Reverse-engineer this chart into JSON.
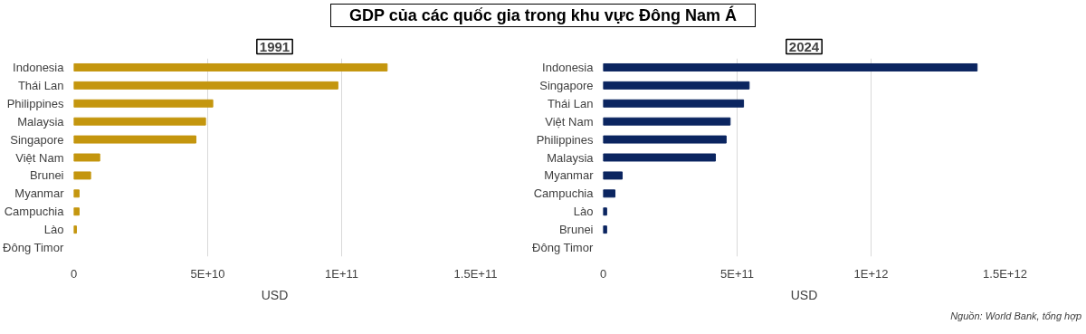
{
  "chart_data": [
    {
      "type": "bar",
      "orientation": "horizontal",
      "title": "1991",
      "xlabel": "USD",
      "categories": [
        "Indonesia",
        "Thái Lan",
        "Philippines",
        "Malaysia",
        "Singapore",
        "Việt Nam",
        "Brunei",
        "Myanmar",
        "Campuchia",
        "Lào",
        "Đông Timor"
      ],
      "values": [
        117000000000.0,
        98600000000.0,
        51900000000.0,
        49200000000.0,
        45600000000.0,
        9700000000.0,
        6300000000.0,
        2000000000.0,
        2000000000.0,
        1000000000.0,
        null
      ],
      "color": "#c4960e",
      "xlim": [
        0,
        150000000000.0
      ],
      "xticks": [
        0,
        {
          "value": 50000000000.0,
          "label": "5E+10"
        },
        {
          "value": 100000000000.0,
          "label": "1E+11"
        },
        {
          "value": 150000000000.0,
          "label": "1.5E+11"
        }
      ],
      "grid": "x",
      "annotations": [
        "GDP của các quốc gia trong khu vực Đông Nam Á"
      ]
    },
    {
      "type": "bar",
      "orientation": "horizontal",
      "title": "2024",
      "xlabel": "USD",
      "categories": [
        "Indonesia",
        "Singapore",
        "Thái Lan",
        "Việt Nam",
        "Philippines",
        "Malaysia",
        "Myanmar",
        "Campuchia",
        "Lào",
        "Brunei",
        "Đông Timor"
      ],
      "values": [
        1396000000000.0,
        545000000000.0,
        524000000000.0,
        474000000000.0,
        459000000000.0,
        419000000000.0,
        71000000000.0,
        44000000000.0,
        13000000000.0,
        13000000000.0,
        null
      ],
      "color": "#0b2560",
      "xlim": [
        0,
        1500000000000.0
      ],
      "xticks": [
        0,
        {
          "value": 500000000000.0,
          "label": "5E+11"
        },
        {
          "value": 1000000000000.0,
          "label": "1E+12"
        },
        {
          "value": 1500000000000.0,
          "label": "1.5E+12"
        }
      ],
      "grid": "x",
      "annotations": [
        "Nguồn: World Bank, tổng hợp"
      ]
    }
  ]
}
